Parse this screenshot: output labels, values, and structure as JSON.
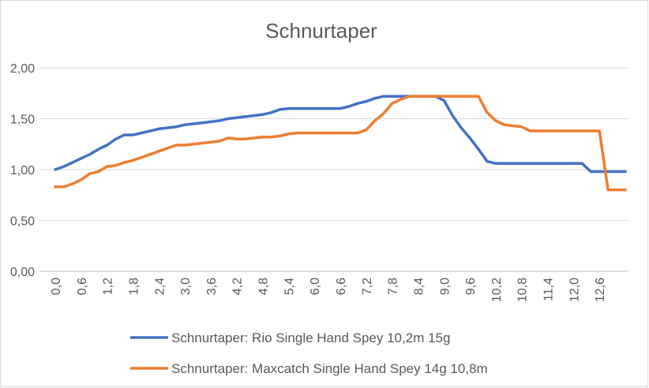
{
  "chart_data": {
    "type": "line",
    "title": "Schnurtaper",
    "xlabel": "",
    "ylabel": "",
    "ylim": [
      0,
      2
    ],
    "yticks": [
      "0,00",
      "0,50",
      "1,00",
      "1,50",
      "2,00"
    ],
    "yticks_values": [
      0,
      0.5,
      1.0,
      1.5,
      2.0
    ],
    "xticks": [
      "0,0",
      "0,6",
      "1,2",
      "1,8",
      "2,4",
      "3,0",
      "3,6",
      "4,2",
      "4,8",
      "5,4",
      "6,0",
      "6,6",
      "7,2",
      "7,8",
      "8,4",
      "9,0",
      "9,6",
      "10,2",
      "10,8",
      "11,4",
      "12,0",
      "12,6"
    ],
    "xticks_values": [
      0,
      0.6,
      1.2,
      1.8,
      2.4,
      3.0,
      3.6,
      4.2,
      4.8,
      5.4,
      6.0,
      6.6,
      7.2,
      7.8,
      8.4,
      9.0,
      9.6,
      10.2,
      10.8,
      11.4,
      12.0,
      12.6
    ],
    "xlim": [
      0,
      13.2
    ],
    "grid": true,
    "legend_position": "bottom",
    "series": [
      {
        "name": "Schnurtaper: Rio Single Hand Spey 10,2m 15g",
        "color": "#4472c4",
        "x": [
          0,
          0.2,
          0.4,
          0.6,
          0.8,
          1.0,
          1.2,
          1.4,
          1.6,
          1.8,
          2.0,
          2.2,
          2.4,
          2.6,
          2.8,
          3.0,
          3.2,
          3.4,
          3.6,
          3.8,
          4.0,
          4.2,
          4.4,
          4.6,
          4.8,
          5.0,
          5.2,
          5.4,
          5.6,
          5.8,
          6.0,
          6.2,
          6.4,
          6.6,
          6.8,
          7.0,
          7.2,
          7.4,
          7.6,
          7.8,
          8.0,
          8.2,
          8.4,
          8.6,
          8.8,
          9.0,
          9.2,
          9.4,
          9.6,
          9.8,
          10.0,
          10.2,
          10.4,
          10.6,
          10.8,
          11.0,
          11.2,
          11.4,
          11.6,
          11.8,
          12.0,
          12.2,
          12.4,
          12.6,
          12.8,
          13.0,
          13.2
        ],
        "values": [
          1.0,
          1.03,
          1.07,
          1.11,
          1.15,
          1.2,
          1.24,
          1.3,
          1.34,
          1.34,
          1.36,
          1.38,
          1.4,
          1.41,
          1.42,
          1.44,
          1.45,
          1.46,
          1.47,
          1.48,
          1.5,
          1.51,
          1.52,
          1.53,
          1.54,
          1.56,
          1.59,
          1.6,
          1.6,
          1.6,
          1.6,
          1.6,
          1.6,
          1.6,
          1.62,
          1.65,
          1.67,
          1.7,
          1.72,
          1.72,
          1.72,
          1.72,
          1.72,
          1.72,
          1.72,
          1.68,
          1.53,
          1.41,
          1.31,
          1.2,
          1.08,
          1.06,
          1.06,
          1.06,
          1.06,
          1.06,
          1.06,
          1.06,
          1.06,
          1.06,
          1.06,
          1.06,
          0.98,
          0.98,
          0.98,
          0.98,
          0.98
        ]
      },
      {
        "name": "Schnurtaper: Maxcatch Single Hand Spey 14g 10,8m",
        "color": "#ed7d31",
        "x": [
          0,
          0.2,
          0.4,
          0.6,
          0.8,
          1.0,
          1.2,
          1.4,
          1.6,
          1.8,
          2.0,
          2.2,
          2.4,
          2.6,
          2.8,
          3.0,
          3.2,
          3.4,
          3.6,
          3.8,
          4.0,
          4.2,
          4.4,
          4.6,
          4.8,
          5.0,
          5.2,
          5.4,
          5.6,
          5.8,
          6.0,
          6.2,
          6.4,
          6.6,
          6.8,
          7.0,
          7.2,
          7.4,
          7.6,
          7.8,
          8.0,
          8.2,
          8.4,
          8.6,
          8.8,
          9.0,
          9.2,
          9.4,
          9.6,
          9.8,
          10.0,
          10.2,
          10.4,
          10.6,
          10.8,
          11.0,
          11.2,
          11.4,
          11.6,
          11.8,
          12.0,
          12.2,
          12.4,
          12.6,
          12.8,
          13.0,
          13.2
        ],
        "values": [
          0.83,
          0.83,
          0.86,
          0.9,
          0.96,
          0.98,
          1.03,
          1.04,
          1.07,
          1.09,
          1.12,
          1.15,
          1.18,
          1.21,
          1.24,
          1.24,
          1.25,
          1.26,
          1.27,
          1.28,
          1.31,
          1.3,
          1.3,
          1.31,
          1.32,
          1.32,
          1.33,
          1.35,
          1.36,
          1.36,
          1.36,
          1.36,
          1.36,
          1.36,
          1.36,
          1.36,
          1.39,
          1.48,
          1.55,
          1.65,
          1.69,
          1.72,
          1.72,
          1.72,
          1.72,
          1.72,
          1.72,
          1.72,
          1.72,
          1.72,
          1.56,
          1.48,
          1.44,
          1.43,
          1.42,
          1.38,
          1.38,
          1.38,
          1.38,
          1.38,
          1.38,
          1.38,
          1.38,
          1.38,
          0.8,
          0.8,
          0.8
        ]
      }
    ]
  }
}
